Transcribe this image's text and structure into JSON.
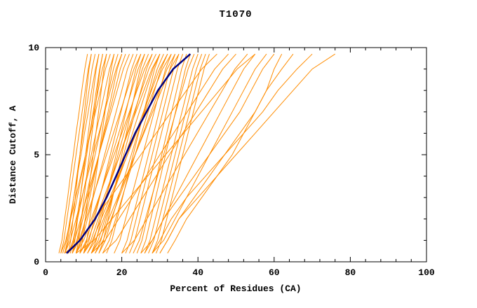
{
  "chart_data": {
    "type": "line",
    "title": "T1070",
    "xlabel": "Percent of Residues (CA)",
    "ylabel": "Distance Cutoff, A",
    "xlim": [
      0,
      100
    ],
    "ylim": [
      0,
      10
    ],
    "x_ticks": [
      0,
      20,
      40,
      60,
      80,
      100
    ],
    "y_ticks": [
      0,
      5,
      10
    ],
    "x_minor_step": 4,
    "y_minor_step": 1,
    "grid": false,
    "legend": "none",
    "colors": {
      "ensemble": "#ff8c00",
      "highlight": "#000080",
      "axis": "#000000",
      "background": "#ffffff"
    },
    "y_levels": [
      0.4,
      1,
      2,
      3,
      4,
      5,
      6,
      7,
      8,
      9,
      9.7
    ],
    "highlight_series": {
      "x": [
        5.5,
        9,
        13,
        16,
        18.5,
        21,
        23.5,
        26.5,
        29.5,
        33.5,
        38
      ]
    },
    "ensemble_series": [
      [
        4,
        4.8,
        5.6,
        6.4,
        7.2,
        8,
        8.8,
        9.6,
        10.4,
        11.2,
        12
      ],
      [
        5,
        5.8,
        6.6,
        7.4,
        8.2,
        9,
        9.8,
        10.6,
        11.4,
        12.2,
        13
      ],
      [
        6,
        6.6,
        7.2,
        7.8,
        8.4,
        9,
        9.6,
        10.2,
        10.8,
        11.4,
        12
      ],
      [
        7,
        7.7,
        8.4,
        9.1,
        9.8,
        10.5,
        11.2,
        11.9,
        12.6,
        13.3,
        14
      ],
      [
        5,
        6.1,
        7.2,
        8.3,
        9.4,
        10.5,
        11.6,
        12.7,
        13.8,
        14.9,
        16
      ],
      [
        8,
        8.7,
        9.4,
        10.1,
        10.8,
        11.5,
        12.2,
        12.9,
        13.6,
        14.3,
        15
      ],
      [
        4,
        5.3,
        6.6,
        7.9,
        9.2,
        10.5,
        11.8,
        13.1,
        14.4,
        15.7,
        17
      ],
      [
        9,
        9.7,
        10.4,
        11.1,
        11.8,
        12.5,
        13.2,
        13.9,
        14.6,
        15.3,
        16
      ],
      [
        6,
        7.2,
        8.4,
        9.6,
        10.8,
        12,
        13.2,
        14.4,
        15.6,
        16.8,
        18
      ],
      [
        10,
        10.8,
        11.6,
        12.4,
        13.2,
        14,
        14.8,
        15.6,
        16.4,
        17.2,
        18
      ],
      [
        7,
        8.2,
        9.4,
        10.6,
        11.8,
        13,
        14.2,
        15.4,
        16.6,
        17.8,
        19
      ],
      [
        5,
        6.5,
        8,
        9.5,
        11,
        12.5,
        14,
        15.5,
        17,
        18.5,
        20
      ],
      [
        6,
        7.6,
        9.2,
        10.8,
        12.4,
        14,
        15.6,
        17.2,
        18.8,
        20.4,
        22
      ],
      [
        8,
        9.5,
        11,
        12.5,
        14,
        15.5,
        17,
        18.5,
        20,
        21.5,
        23
      ],
      [
        10,
        11.4,
        12.8,
        14.2,
        15.6,
        17,
        18.4,
        19.8,
        21.2,
        22.6,
        24
      ],
      [
        7,
        8.8,
        10.6,
        12.4,
        14.2,
        16,
        17.8,
        19.6,
        21.4,
        23.2,
        25
      ],
      [
        12,
        13.3,
        14.6,
        15.9,
        17.2,
        18.5,
        19.8,
        21.1,
        22.4,
        23.7,
        25
      ],
      [
        9,
        10.7,
        12.4,
        14.1,
        15.8,
        17.5,
        19.2,
        20.9,
        22.6,
        24.3,
        26
      ],
      [
        11,
        12.6,
        14.2,
        15.8,
        17.4,
        19,
        20.6,
        22.2,
        23.8,
        25.4,
        27
      ],
      [
        8,
        10,
        12,
        14,
        16,
        18,
        20,
        22,
        24,
        26,
        28
      ],
      [
        13,
        14.5,
        16,
        17.5,
        19,
        20.5,
        22,
        23.5,
        25,
        26.5,
        28
      ],
      [
        10,
        11.9,
        13.8,
        15.7,
        17.6,
        19.5,
        21.4,
        23.3,
        25.2,
        27.1,
        29
      ],
      [
        12,
        13.8,
        15.6,
        17.4,
        19.2,
        21,
        22.8,
        24.6,
        26.4,
        28.2,
        30
      ],
      [
        9,
        11.1,
        13.2,
        15.3,
        17.4,
        19.5,
        21.6,
        23.7,
        25.8,
        27.9,
        30
      ],
      [
        14,
        15.7,
        17.4,
        19.1,
        20.8,
        22.5,
        24.2,
        25.9,
        27.6,
        29.3,
        31
      ],
      [
        11,
        13.1,
        15.2,
        17.3,
        19.4,
        21.5,
        23.6,
        25.7,
        27.8,
        29.9,
        32
      ],
      [
        15,
        16.7,
        18.4,
        20.1,
        21.8,
        23.5,
        25.2,
        26.9,
        28.6,
        30.3,
        32
      ],
      [
        10,
        12.3,
        14.6,
        16.9,
        19.2,
        21.5,
        23.8,
        26.1,
        28.4,
        30.7,
        33
      ],
      [
        13,
        15.1,
        17.2,
        19.3,
        21.4,
        23.5,
        25.6,
        27.7,
        29.8,
        31.9,
        34
      ],
      [
        12,
        14.3,
        16.6,
        18.9,
        21.2,
        23.5,
        25.8,
        28.1,
        30.4,
        32.7,
        35
      ],
      [
        20,
        21.4,
        22.8,
        24.2,
        25.6,
        27,
        28.4,
        29.8,
        31.2,
        32.6,
        34
      ],
      [
        22,
        23.4,
        24.8,
        26.2,
        27.6,
        29,
        30.4,
        31.8,
        33.2,
        34.6,
        36
      ],
      [
        24,
        25.3,
        26.6,
        27.9,
        29.2,
        30.5,
        31.8,
        33.1,
        34.4,
        35.7,
        37
      ],
      [
        25,
        26.3,
        27.6,
        28.9,
        30.2,
        31.5,
        32.8,
        34.1,
        35.4,
        36.7,
        38
      ],
      [
        23,
        24.6,
        26.2,
        27.8,
        29.4,
        31,
        32.6,
        34.2,
        35.8,
        37.4,
        39
      ],
      [
        26,
        27.4,
        28.8,
        30.2,
        31.6,
        33,
        34.4,
        35.8,
        37.2,
        38.6,
        40
      ],
      [
        27,
        28.4,
        29.8,
        31.2,
        32.6,
        34,
        35.4,
        36.8,
        38.2,
        39.6,
        41
      ],
      [
        28,
        29.4,
        30.8,
        32.2,
        33.6,
        35,
        36.4,
        37.8,
        39.2,
        40.6,
        42
      ],
      [
        15,
        18.5,
        22,
        25.5,
        29,
        32.5,
        36,
        39.5,
        43,
        46.5,
        50
      ],
      [
        20,
        23.3,
        26.6,
        29.9,
        33.2,
        36.5,
        39.8,
        43.1,
        46.4,
        49.7,
        53
      ],
      [
        25,
        28,
        31,
        34,
        37,
        40,
        43,
        46,
        49,
        52,
        55
      ],
      [
        28,
        31,
        34,
        37,
        40,
        43,
        46,
        49,
        52,
        55,
        58
      ],
      [
        26,
        28,
        31,
        35,
        39,
        43,
        47,
        51,
        54,
        57,
        60
      ],
      [
        30,
        32,
        35,
        39,
        43,
        47,
        51,
        55,
        58,
        62,
        65
      ],
      [
        28,
        30,
        33,
        37,
        42,
        47,
        52,
        57,
        61,
        66,
        70
      ],
      [
        30,
        32,
        35,
        40,
        45,
        50,
        55,
        60,
        65,
        70,
        76
      ],
      [
        4.5,
        5.5,
        6.4,
        7.4,
        8.3,
        9.3,
        10.2,
        11.2,
        12.1,
        13.1,
        14
      ],
      [
        6.5,
        7.4,
        8.2,
        9.1,
        9.9,
        10.8,
        11.6,
        12.5,
        13.3,
        14.2,
        15
      ],
      [
        8,
        9.2,
        10.4,
        11.6,
        12.8,
        14,
        15.2,
        16.4,
        17.6,
        18.8,
        20
      ],
      [
        3.5,
        4.3,
        5,
        5.8,
        6.5,
        7.3,
        8,
        8.8,
        9.5,
        10.3,
        11
      ],
      [
        14,
        15.2,
        16.4,
        17.6,
        18.8,
        20,
        21.2,
        22.4,
        23.6,
        24.8,
        26
      ],
      [
        16,
        17.4,
        18.8,
        20.2,
        21.6,
        23,
        24.4,
        25.8,
        27.2,
        28.6,
        30
      ],
      [
        18,
        19.5,
        21,
        22.5,
        24,
        25.5,
        27,
        28.5,
        30,
        31.5,
        33
      ],
      [
        7,
        8.4,
        9.8,
        11.2,
        12.6,
        14,
        15.4,
        16.8,
        18.2,
        19.6,
        21
      ],
      [
        21,
        22.4,
        23.8,
        25.2,
        26.6,
        28,
        29.4,
        30.8,
        32.2,
        33.6,
        35
      ],
      [
        29,
        30.4,
        31.8,
        33.2,
        34.6,
        36,
        37.4,
        38.8,
        40.2,
        41.6,
        43
      ],
      [
        12,
        15.6,
        19.2,
        22.8,
        26.4,
        30,
        33.6,
        37.2,
        40.8,
        44.4,
        48
      ],
      [
        32,
        34,
        37,
        41,
        45,
        49,
        52,
        55,
        58,
        60,
        62
      ],
      [
        5,
        9,
        13,
        17,
        21,
        25,
        29,
        33,
        37,
        41,
        45
      ],
      [
        8,
        12.7,
        17.4,
        22.1,
        26.8,
        31.5,
        36.2,
        40.9,
        45.6,
        50.3,
        55
      ]
    ]
  }
}
